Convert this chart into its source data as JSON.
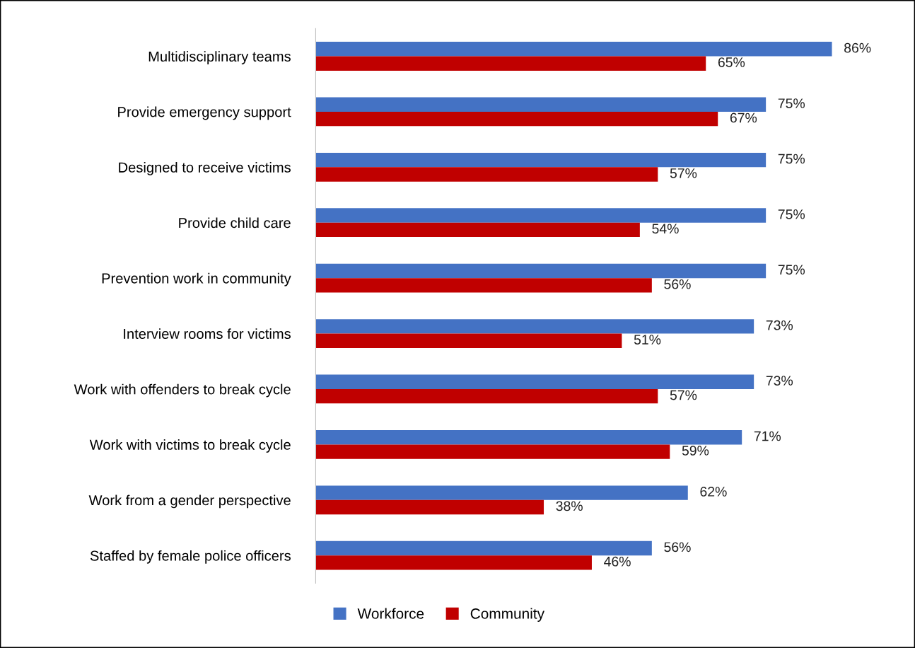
{
  "chart_data": {
    "type": "bar",
    "orientation": "horizontal",
    "categories": [
      "Multidisciplinary teams",
      "Provide emergency support",
      "Designed to receive victims",
      "Provide child care",
      "Prevention work in community",
      "Interview rooms for victims",
      "Work with offenders to break cycle",
      "Work with victims to break cycle",
      "Work from a gender perspective",
      "Staffed by female police officers"
    ],
    "series": [
      {
        "name": "Workforce",
        "color": "#4472c4",
        "values": [
          86,
          75,
          75,
          75,
          75,
          73,
          73,
          71,
          62,
          56
        ],
        "value_labels": [
          "86%",
          "75%",
          "75%",
          "75%",
          "75%",
          "73%",
          "73%",
          "71%",
          "62%",
          "56%"
        ]
      },
      {
        "name": "Community",
        "color": "#c00000",
        "values": [
          65,
          67,
          57,
          54,
          56,
          51,
          57,
          59,
          38,
          46
        ],
        "value_labels": [
          "65%",
          "67%",
          "57%",
          "54%",
          "56%",
          "51%",
          "57%",
          "59%",
          "38%",
          "46%"
        ]
      }
    ],
    "legend": "bottom",
    "grid": false
  }
}
